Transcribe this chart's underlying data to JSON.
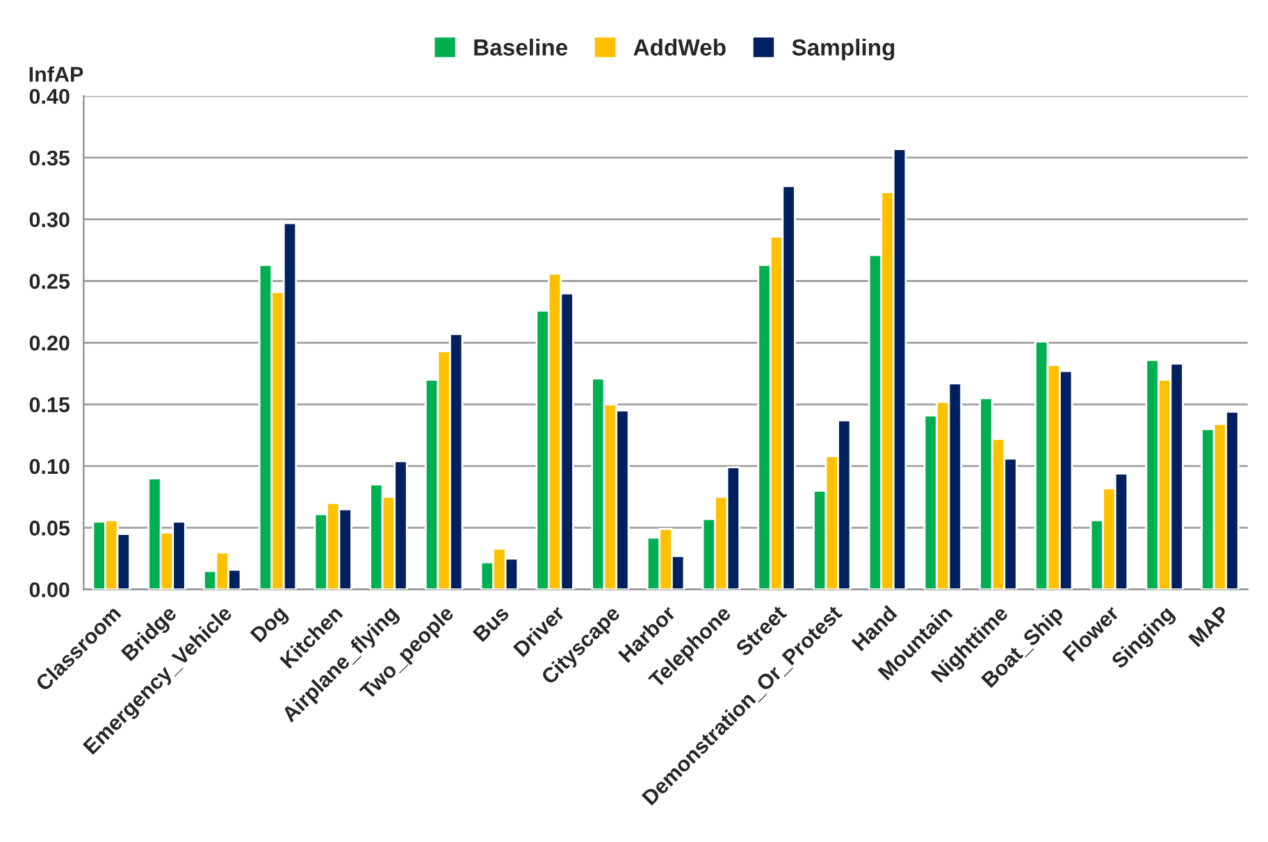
{
  "chart_data": {
    "type": "bar",
    "ylabel": "InfAP",
    "categories": [
      "Classroom",
      "Bridge",
      "Emergency_Vehicle",
      "Dog",
      "Kitchen",
      "Airplane_flying",
      "Two_people",
      "Bus",
      "Driver",
      "Cityscape",
      "Harbor",
      "Telephone",
      "Street",
      "Demonstration_Or_Protest",
      "Hand",
      "Mountain",
      "Nighttime",
      "Boat_Ship",
      "Flower",
      "Singing",
      "MAP"
    ],
    "series": [
      {
        "name": "Baseline",
        "color": "#00b050",
        "values": [
          0.055,
          0.09,
          0.015,
          0.263,
          0.061,
          0.085,
          0.17,
          0.022,
          0.226,
          0.171,
          0.042,
          0.057,
          0.263,
          0.08,
          0.271,
          0.141,
          0.155,
          0.201,
          0.056,
          0.186,
          0.13
        ]
      },
      {
        "name": "AddWeb",
        "color": "#ffc000",
        "values": [
          0.056,
          0.046,
          0.03,
          0.241,
          0.07,
          0.075,
          0.193,
          0.033,
          0.256,
          0.15,
          0.049,
          0.075,
          0.286,
          0.108,
          0.322,
          0.152,
          0.122,
          0.182,
          0.082,
          0.17,
          0.134
        ]
      },
      {
        "name": "Sampling",
        "color": "#002060",
        "values": [
          0.045,
          0.055,
          0.016,
          0.297,
          0.065,
          0.104,
          0.207,
          0.025,
          0.24,
          0.145,
          0.027,
          0.099,
          0.327,
          0.137,
          0.357,
          0.167,
          0.106,
          0.177,
          0.094,
          0.183,
          0.144
        ]
      }
    ],
    "ylim": [
      0,
      0.4
    ],
    "yticks": [
      {
        "value": 0,
        "label": "0.00"
      },
      {
        "value": 0.05,
        "label": "0.05"
      },
      {
        "value": 0.1,
        "label": "0.10"
      },
      {
        "value": 0.15,
        "label": "0.15"
      },
      {
        "value": 0.2,
        "label": "0.20"
      },
      {
        "value": 0.25,
        "label": "0.25"
      },
      {
        "value": 0.3,
        "label": "0.30"
      },
      {
        "value": 0.35,
        "label": "0.35"
      },
      {
        "value": 0.4,
        "label": "0.40"
      }
    ],
    "grid": "y",
    "legend": "top"
  }
}
